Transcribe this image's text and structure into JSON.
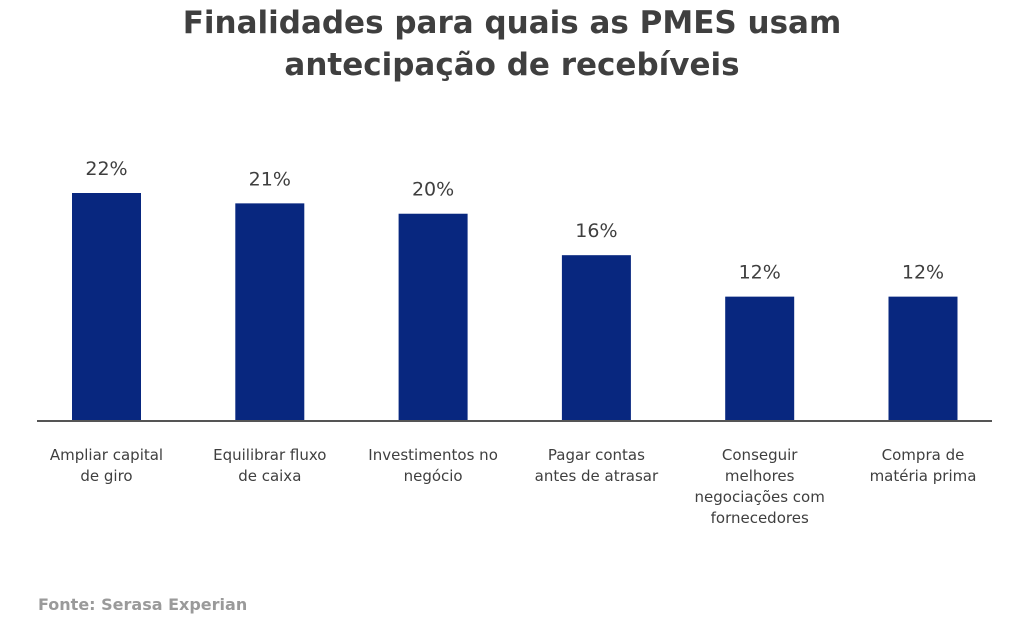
{
  "chart_data": {
    "type": "bar",
    "title_lines": [
      "Finalidades para quais as PMES usam",
      "antecipação de recebíveis"
    ],
    "categories": [
      [
        "Ampliar capital",
        "de giro"
      ],
      [
        "Equilibrar fluxo",
        "de caixa"
      ],
      [
        "Investimentos no",
        "negócio"
      ],
      [
        "Pagar contas",
        "antes de atrasar"
      ],
      [
        "Conseguir",
        "melhores",
        "negociações com",
        "fornecedores"
      ],
      [
        "Compra de",
        "matéria prima"
      ]
    ],
    "values": [
      22,
      21,
      20,
      16,
      12,
      12
    ],
    "data_labels": [
      "22%",
      "21%",
      "20%",
      "16%",
      "12%",
      "12%"
    ],
    "ylim": [
      0,
      22
    ],
    "grid": false,
    "bar_color": "#08277f",
    "label_color": "#3f3f3f"
  },
  "source": "Fonte: Serasa Experian"
}
